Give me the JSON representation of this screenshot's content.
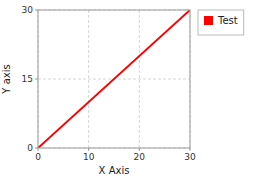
{
  "chart_data": {
    "type": "line",
    "x": [
      0,
      30
    ],
    "series": [
      {
        "name": "Test",
        "color": "#ff0000",
        "values": [
          0,
          30
        ]
      }
    ],
    "xlabel": "X Axis",
    "ylabel": "Y axis",
    "xlim": [
      0,
      30
    ],
    "ylim": [
      0,
      30
    ],
    "xticks": [
      0,
      10,
      20,
      30
    ],
    "yticks": [
      0,
      15,
      30
    ],
    "grid": true,
    "legend": "right"
  }
}
